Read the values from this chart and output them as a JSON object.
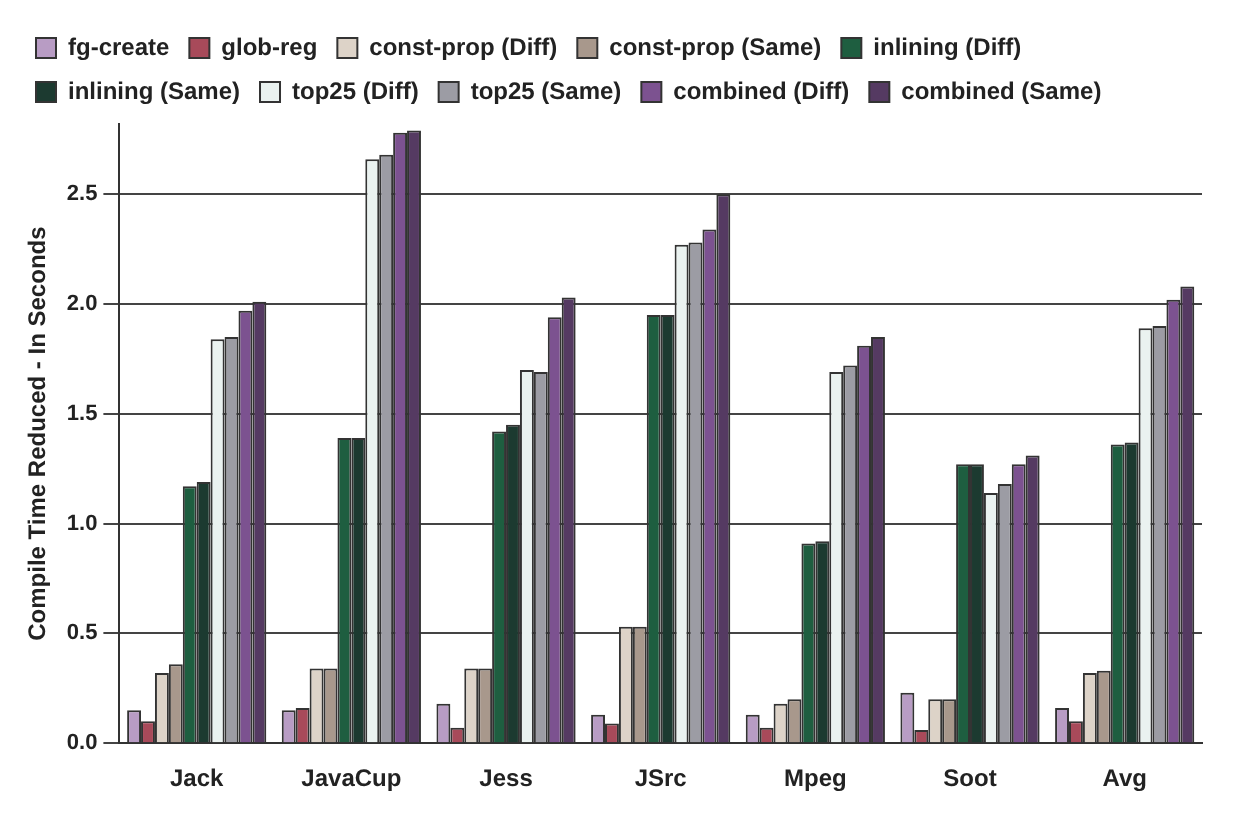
{
  "chart_data": {
    "type": "bar",
    "ylabel": "Compile Time Reduced - In Seconds",
    "categories": [
      "Jack",
      "JavaCup",
      "Jess",
      "JSrc",
      "Mpeg",
      "Soot",
      "Avg"
    ],
    "series": [
      {
        "name": "fg-create",
        "color": "#b89cc4",
        "values": [
          0.15,
          0.15,
          0.18,
          0.13,
          0.13,
          0.23,
          0.16
        ]
      },
      {
        "name": "glob-reg",
        "color": "#a84a5a",
        "values": [
          0.1,
          0.16,
          0.07,
          0.09,
          0.07,
          0.06,
          0.1
        ]
      },
      {
        "name": "const-prop (Diff)",
        "color": "#ddd3c8",
        "values": [
          0.32,
          0.34,
          0.34,
          0.53,
          0.18,
          0.2,
          0.32
        ]
      },
      {
        "name": "const-prop (Same)",
        "color": "#a8988c",
        "values": [
          0.36,
          0.34,
          0.34,
          0.53,
          0.2,
          0.2,
          0.33
        ]
      },
      {
        "name": "inlining (Diff)",
        "color": "#1e5e40",
        "values": [
          1.17,
          1.39,
          1.42,
          1.95,
          0.91,
          1.27,
          1.36
        ]
      },
      {
        "name": "inlining (Same)",
        "color": "#1c3a30",
        "values": [
          1.19,
          1.39,
          1.45,
          1.95,
          0.92,
          1.27,
          1.37
        ]
      },
      {
        "name": "top25 (Diff)",
        "color": "#eaf2f0",
        "values": [
          1.84,
          2.66,
          1.7,
          2.27,
          1.69,
          1.14,
          1.89
        ]
      },
      {
        "name": "top25 (Same)",
        "color": "#9c9ca4",
        "values": [
          1.85,
          2.68,
          1.69,
          2.28,
          1.72,
          1.18,
          1.9
        ]
      },
      {
        "name": "combined (Diff)",
        "color": "#7c5290",
        "values": [
          1.97,
          2.78,
          1.94,
          2.34,
          1.81,
          1.27,
          2.02
        ]
      },
      {
        "name": "combined (Same)",
        "color": "#553a62",
        "values": [
          2.01,
          2.79,
          2.03,
          2.5,
          1.85,
          1.31,
          2.08
        ]
      }
    ],
    "ylim": [
      0,
      2.82
    ],
    "yticks": [
      {
        "value": 0,
        "label": "0.0"
      },
      {
        "value": 0.5,
        "label": "0.5"
      },
      {
        "value": 1,
        "label": "1.0"
      },
      {
        "value": 1.5,
        "label": "1.5"
      },
      {
        "value": 2,
        "label": "2.0"
      },
      {
        "value": 2.5,
        "label": "2.5"
      }
    ],
    "grid": "y",
    "legend": "top"
  }
}
